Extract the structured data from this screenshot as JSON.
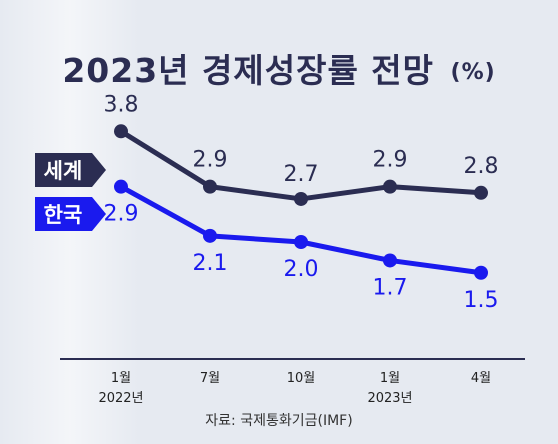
{
  "title": "2023년 경제성장률 전망",
  "title_unit": "(%)",
  "source": "자료: 국제통화기금(IMF)",
  "chart_data": {
    "type": "line",
    "title": "2023년 경제성장률 전망 (%)",
    "categories": [
      {
        "label": "1월",
        "sub": "2022년"
      },
      {
        "label": "7월",
        "sub": ""
      },
      {
        "label": "10월",
        "sub": ""
      },
      {
        "label": "1월",
        "sub": "2023년"
      },
      {
        "label": "4월",
        "sub": ""
      }
    ],
    "series": [
      {
        "name": "세계",
        "color": "#2b2d52",
        "labels": [
          "3.8",
          "2.9",
          "2.7",
          "2.9",
          "2.8"
        ],
        "values": [
          3.8,
          2.9,
          2.7,
          2.9,
          2.8
        ]
      },
      {
        "name": "한국",
        "color": "#1a1aee",
        "labels": [
          "2.9",
          "2.1",
          "2.0",
          "1.7",
          "1.5"
        ],
        "values": [
          2.9,
          2.1,
          2.0,
          1.7,
          1.5
        ]
      }
    ],
    "legend_placement": "left",
    "grid": false
  }
}
